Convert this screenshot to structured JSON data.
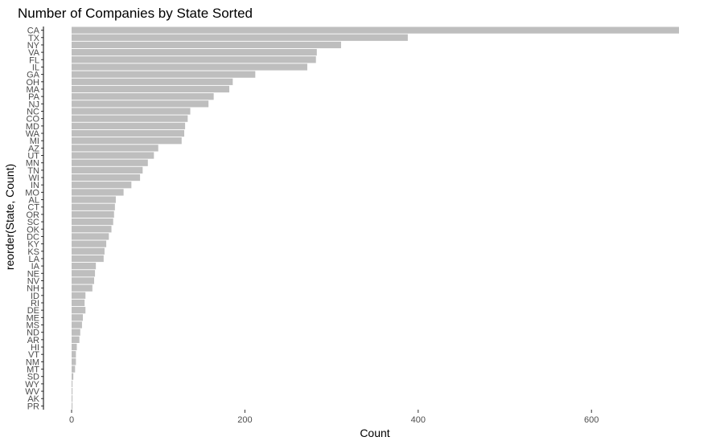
{
  "chart_data": {
    "type": "bar",
    "orientation": "horizontal",
    "title": "Number of Companies by State Sorted",
    "xlabel": "Count",
    "ylabel": "reorder(State, Count)",
    "xlim": [
      0,
      735
    ],
    "xticks": [
      0,
      200,
      400,
      600
    ],
    "grid": false,
    "bar_color": "#bebebe",
    "categories": [
      "CA",
      "TX",
      "NY",
      "VA",
      "FL",
      "IL",
      "GA",
      "OH",
      "MA",
      "PA",
      "NJ",
      "NC",
      "CO",
      "MD",
      "WA",
      "MI",
      "AZ",
      "UT",
      "MN",
      "TN",
      "WI",
      "IN",
      "MO",
      "AL",
      "CT",
      "OR",
      "SC",
      "OK",
      "DC",
      "KY",
      "KS",
      "LA",
      "IA",
      "NE",
      "NV",
      "NH",
      "ID",
      "RI",
      "DE",
      "ME",
      "MS",
      "ND",
      "AR",
      "HI",
      "VT",
      "NM",
      "MT",
      "SD",
      "WY",
      "WV",
      "AK",
      "PR"
    ],
    "values": [
      701,
      388,
      311,
      283,
      282,
      272,
      212,
      186,
      182,
      164,
      158,
      137,
      134,
      131,
      130,
      127,
      100,
      95,
      88,
      82,
      79,
      69,
      60,
      51,
      50,
      49,
      48,
      46,
      43,
      40,
      38,
      37,
      28,
      27,
      26,
      24,
      16,
      15,
      16,
      13,
      12,
      10,
      9,
      6,
      5,
      5,
      4,
      2,
      1,
      1,
      1,
      1
    ]
  }
}
